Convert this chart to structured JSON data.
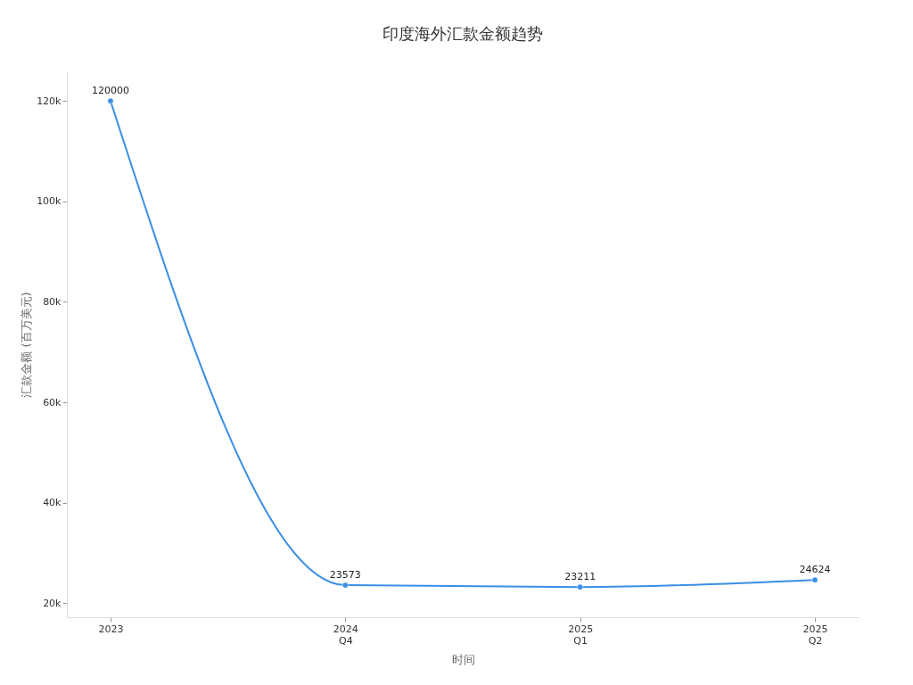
{
  "chart_data": {
    "type": "line",
    "title": "印度海外汇款金额趋势",
    "xlabel": "时间",
    "ylabel": "汇款金额 (百万美元)",
    "categories": [
      "2023",
      "2024\nQ4",
      "2025\nQ1",
      "2025\nQ2"
    ],
    "series": [
      {
        "color": "#3a8ee6",
        "values": [
          120000,
          23573,
          23211,
          24624
        ]
      }
    ],
    "ylim": [
      17200,
      125900
    ],
    "yticks": [
      {
        "value": 20000,
        "label": "20k"
      },
      {
        "value": 40000,
        "label": "40k"
      },
      {
        "value": 60000,
        "label": "60k"
      },
      {
        "value": 80000,
        "label": "80k"
      },
      {
        "value": 100000,
        "label": "100k"
      },
      {
        "value": 120000,
        "label": "120k"
      }
    ],
    "data_labels": true,
    "grid": false,
    "marker": "circle",
    "line_style": "solid"
  }
}
